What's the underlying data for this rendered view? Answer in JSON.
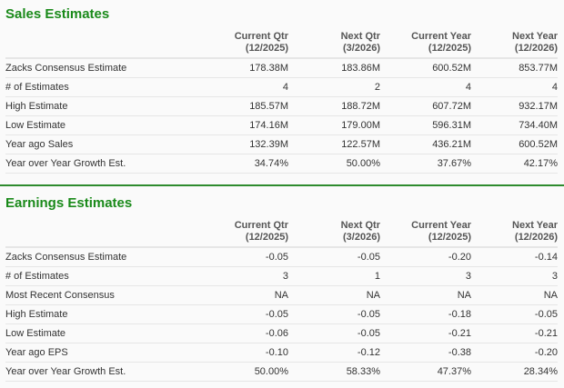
{
  "sales": {
    "title": "Sales Estimates",
    "columns": [
      {
        "l1": "Current Qtr",
        "l2": "(12/2025)"
      },
      {
        "l1": "Next Qtr",
        "l2": "(3/2026)"
      },
      {
        "l1": "Current Year",
        "l2": "(12/2025)"
      },
      {
        "l1": "Next Year",
        "l2": "(12/2026)"
      }
    ],
    "rows": [
      {
        "label": "Zacks Consensus Estimate",
        "values": [
          "178.38M",
          "183.86M",
          "600.52M",
          "853.77M"
        ]
      },
      {
        "label": "# of Estimates",
        "values": [
          "4",
          "2",
          "4",
          "4"
        ]
      },
      {
        "label": "High Estimate",
        "values": [
          "185.57M",
          "188.72M",
          "607.72M",
          "932.17M"
        ]
      },
      {
        "label": "Low Estimate",
        "values": [
          "174.16M",
          "179.00M",
          "596.31M",
          "734.40M"
        ]
      },
      {
        "label": "Year ago Sales",
        "values": [
          "132.39M",
          "122.57M",
          "436.21M",
          "600.52M"
        ]
      },
      {
        "label": "Year over Year Growth Est.",
        "values": [
          "34.74%",
          "50.00%",
          "37.67%",
          "42.17%"
        ]
      }
    ]
  },
  "earnings": {
    "title": "Earnings Estimates",
    "columns": [
      {
        "l1": "Current Qtr",
        "l2": "(12/2025)"
      },
      {
        "l1": "Next Qtr",
        "l2": "(3/2026)"
      },
      {
        "l1": "Current Year",
        "l2": "(12/2025)"
      },
      {
        "l1": "Next Year",
        "l2": "(12/2026)"
      }
    ],
    "rows": [
      {
        "label": "Zacks Consensus Estimate",
        "values": [
          "-0.05",
          "-0.05",
          "-0.20",
          "-0.14"
        ]
      },
      {
        "label": "# of Estimates",
        "values": [
          "3",
          "1",
          "3",
          "3"
        ]
      },
      {
        "label": "Most Recent Consensus",
        "values": [
          "NA",
          "NA",
          "NA",
          "NA"
        ]
      },
      {
        "label": "High Estimate",
        "values": [
          "-0.05",
          "-0.05",
          "-0.18",
          "-0.05"
        ]
      },
      {
        "label": "Low Estimate",
        "values": [
          "-0.06",
          "-0.05",
          "-0.21",
          "-0.21"
        ]
      },
      {
        "label": "Year ago EPS",
        "values": [
          "-0.10",
          "-0.12",
          "-0.38",
          "-0.20"
        ]
      },
      {
        "label": "Year over Year Growth Est.",
        "values": [
          "50.00%",
          "58.33%",
          "47.37%",
          "28.34%"
        ]
      }
    ]
  },
  "colors": {
    "accent": "#1a8a1a",
    "divider": "#2e8b2e"
  }
}
